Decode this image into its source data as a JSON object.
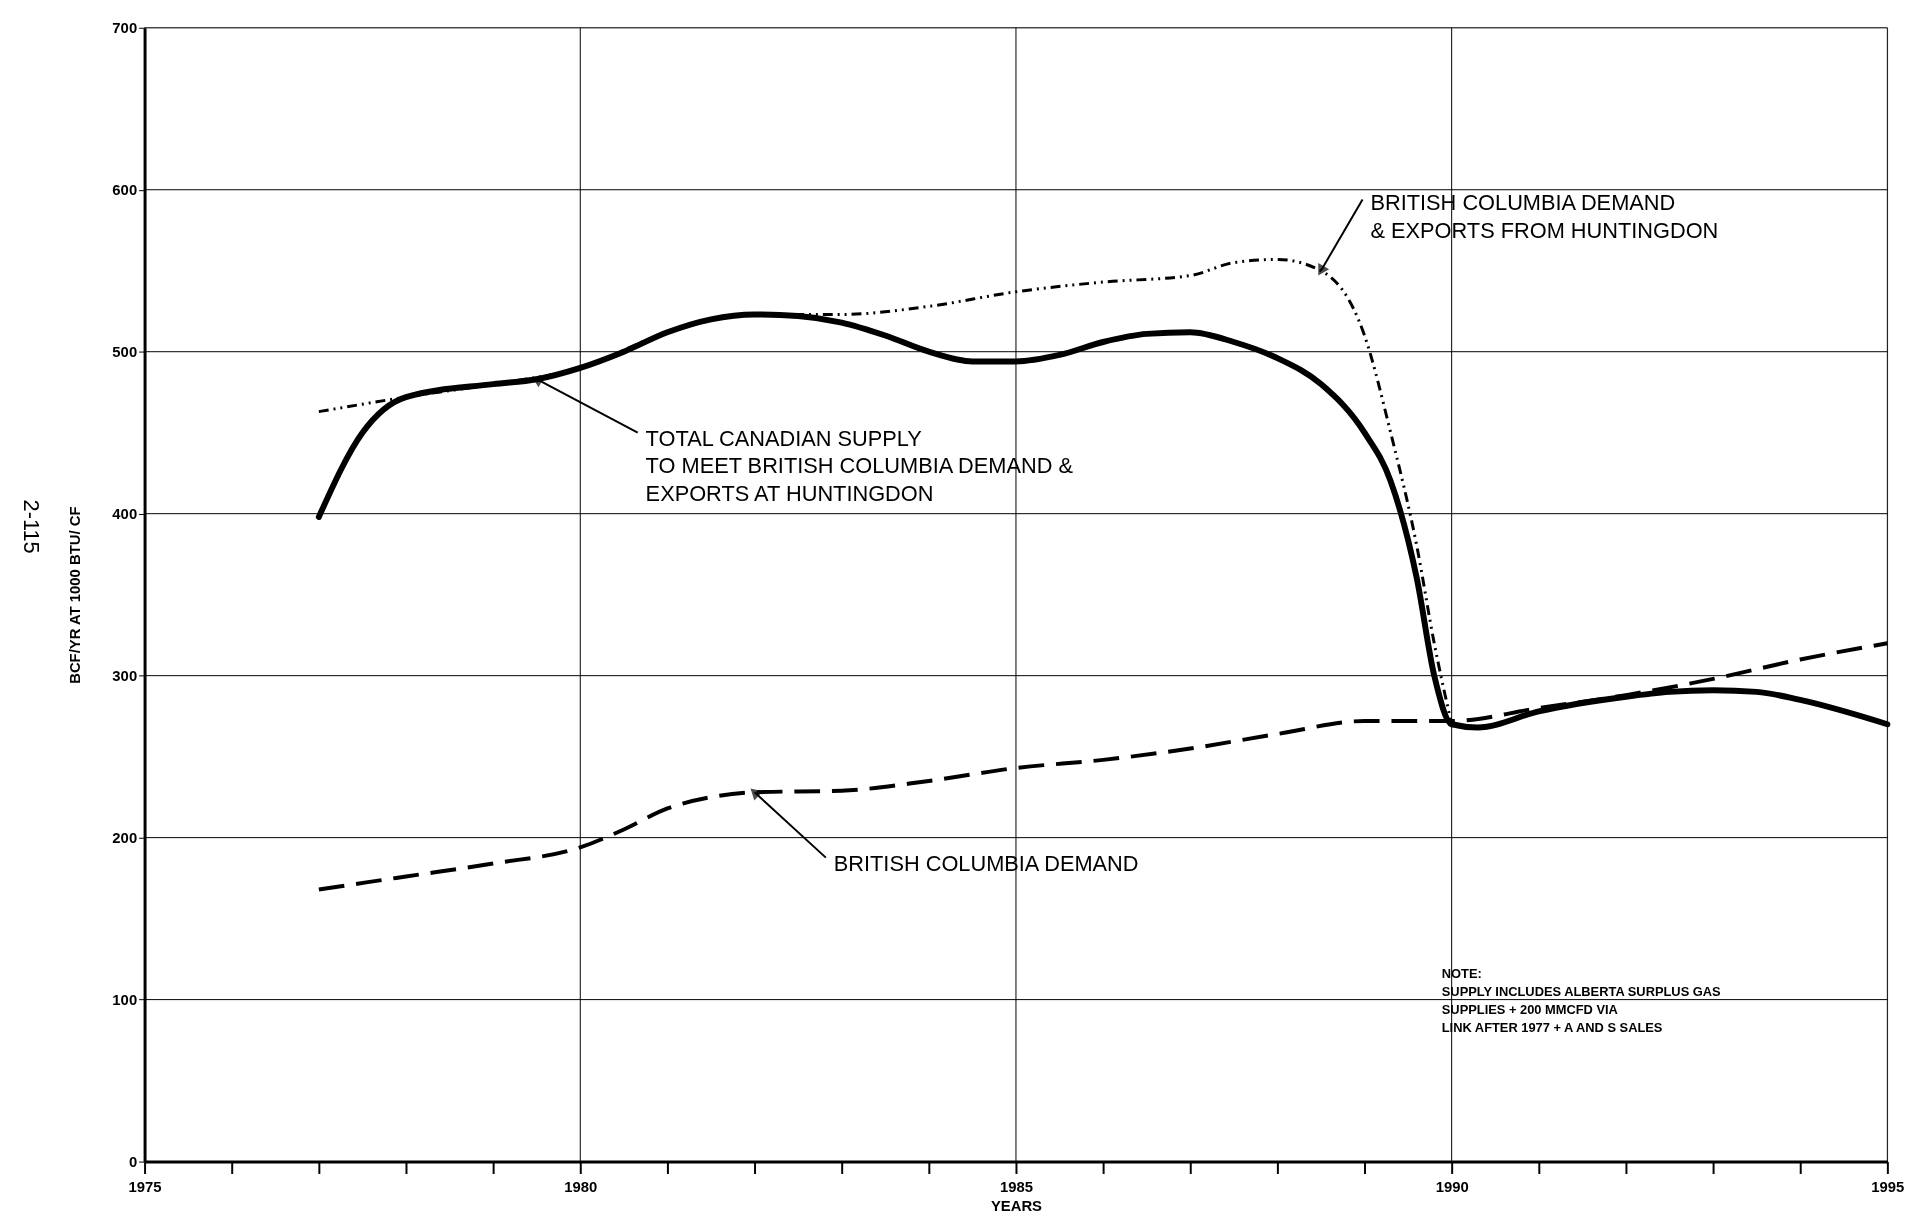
{
  "chart_data": {
    "type": "line",
    "xlabel": "YEARS",
    "ylabel": "BCF/YR AT 1000 BTU/ CF",
    "xlim": [
      1975,
      1995
    ],
    "ylim": [
      0,
      700
    ],
    "xticks": [
      1975,
      {
        "value": 1976,
        "label": null
      },
      {
        "value": 1977,
        "label": null
      },
      {
        "value": 1978,
        "label": null
      },
      {
        "value": 1979,
        "label": null
      },
      1980,
      {
        "value": 1981,
        "label": null
      },
      {
        "value": 1982,
        "label": null
      },
      {
        "value": 1983,
        "label": null
      },
      {
        "value": 1984,
        "label": null
      },
      1985,
      {
        "value": 1986,
        "label": null
      },
      {
        "value": 1987,
        "label": null
      },
      {
        "value": 1988,
        "label": null
      },
      {
        "value": 1989,
        "label": null
      },
      1990,
      {
        "value": 1991,
        "label": null
      },
      {
        "value": 1992,
        "label": null
      },
      {
        "value": 1993,
        "label": null
      },
      {
        "value": 1994,
        "label": null
      },
      1995
    ],
    "yticks": [
      0,
      100,
      200,
      300,
      400,
      500,
      600,
      700
    ],
    "grid": true,
    "marker": "none",
    "series": [
      {
        "color": "#000000",
        "line_style": "solid",
        "x": [
          1977,
          1977.5,
          1978,
          1979,
          1979.5,
          1980,
          1980.5,
          1981,
          1981.5,
          1982,
          1982.5,
          1983,
          1983.5,
          1984,
          1984.5,
          1985,
          1985.5,
          1986,
          1986.5,
          1987,
          1987.5,
          1988,
          1988.5,
          1989,
          1989.3,
          1989.6,
          1989.8,
          1990,
          1990.3,
          1991,
          1992,
          1992.5,
          1993,
          1993.5,
          1994,
          1995
        ],
        "values": [
          398,
          450,
          472,
          480,
          483,
          490,
          500,
          512,
          520,
          523,
          522,
          518,
          510,
          500,
          494,
          494,
          498,
          506,
          511,
          512,
          506,
          496,
          480,
          450,
          420,
          360,
          300,
          270,
          268,
          278,
          287,
          290,
          291,
          290,
          285,
          270
        ]
      },
      {
        "color": "#000000",
        "line_style": "dotted",
        "x": [
          1977,
          1978,
          1979,
          1980,
          1981,
          1982,
          1983,
          1984,
          1985,
          1986,
          1987,
          1987.5,
          1988,
          1988.5,
          1989,
          1989.3,
          1989.6,
          1989.8,
          1990
        ],
        "values": [
          463,
          472,
          480,
          490,
          512,
          523,
          523,
          528,
          537,
          543,
          547,
          555,
          557,
          550,
          510,
          450,
          380,
          320,
          270
        ]
      },
      {
        "color": "#000000",
        "line_style": "dashed",
        "x": [
          1977,
          1978,
          1979,
          1980,
          1980.5,
          1981,
          1981.5,
          1982,
          1983,
          1984,
          1985,
          1986,
          1987,
          1988,
          1989,
          1990,
          1991,
          1992,
          1993,
          1994,
          1995
        ],
        "values": [
          168,
          176,
          184,
          194,
          205,
          218,
          225,
          228,
          229,
          235,
          243,
          248,
          255,
          264,
          272,
          272,
          280,
          288,
          298,
          310,
          320
        ]
      }
    ],
    "annotations": [
      {
        "text": "TOTAL CANADIAN SUPPLY\nTO MEET BRITISH COLUMBIA DEMAND &\nEXPORTS AT HUNTINGDON",
        "x": 1979.5,
        "y": 483
      },
      {
        "text": "BRITISH COLUMBIA DEMAND\n& EXPORTS FROM HUNTINGDON",
        "x": 1988.5,
        "y": 550
      },
      {
        "text": "BRITISH COLUMBIA DEMAND",
        "x": 1982,
        "y": 228
      },
      "NOTE:\nSUPPLY INCLUDES ALBERTA SURPLUS GAS\nSUPPLIES + 200 MMCFD VIA\nLINK AFTER 1977 + A AND S SALES",
      "2-115"
    ]
  }
}
